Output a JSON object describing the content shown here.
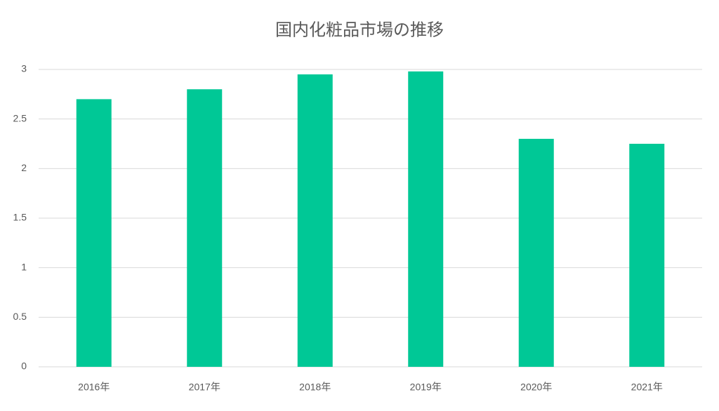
{
  "chart_data": {
    "type": "bar",
    "title": "国内化粧品市場の推移",
    "categories": [
      "2016年",
      "2017年",
      "2018年",
      "2019年",
      "2020年",
      "2021年"
    ],
    "values": [
      2.7,
      2.8,
      2.95,
      2.98,
      2.3,
      2.25
    ],
    "color": "#00c896",
    "ylim": [
      0,
      3
    ],
    "yticks": [
      0,
      0.5,
      1,
      1.5,
      2,
      2.5,
      3
    ],
    "grid": true
  }
}
